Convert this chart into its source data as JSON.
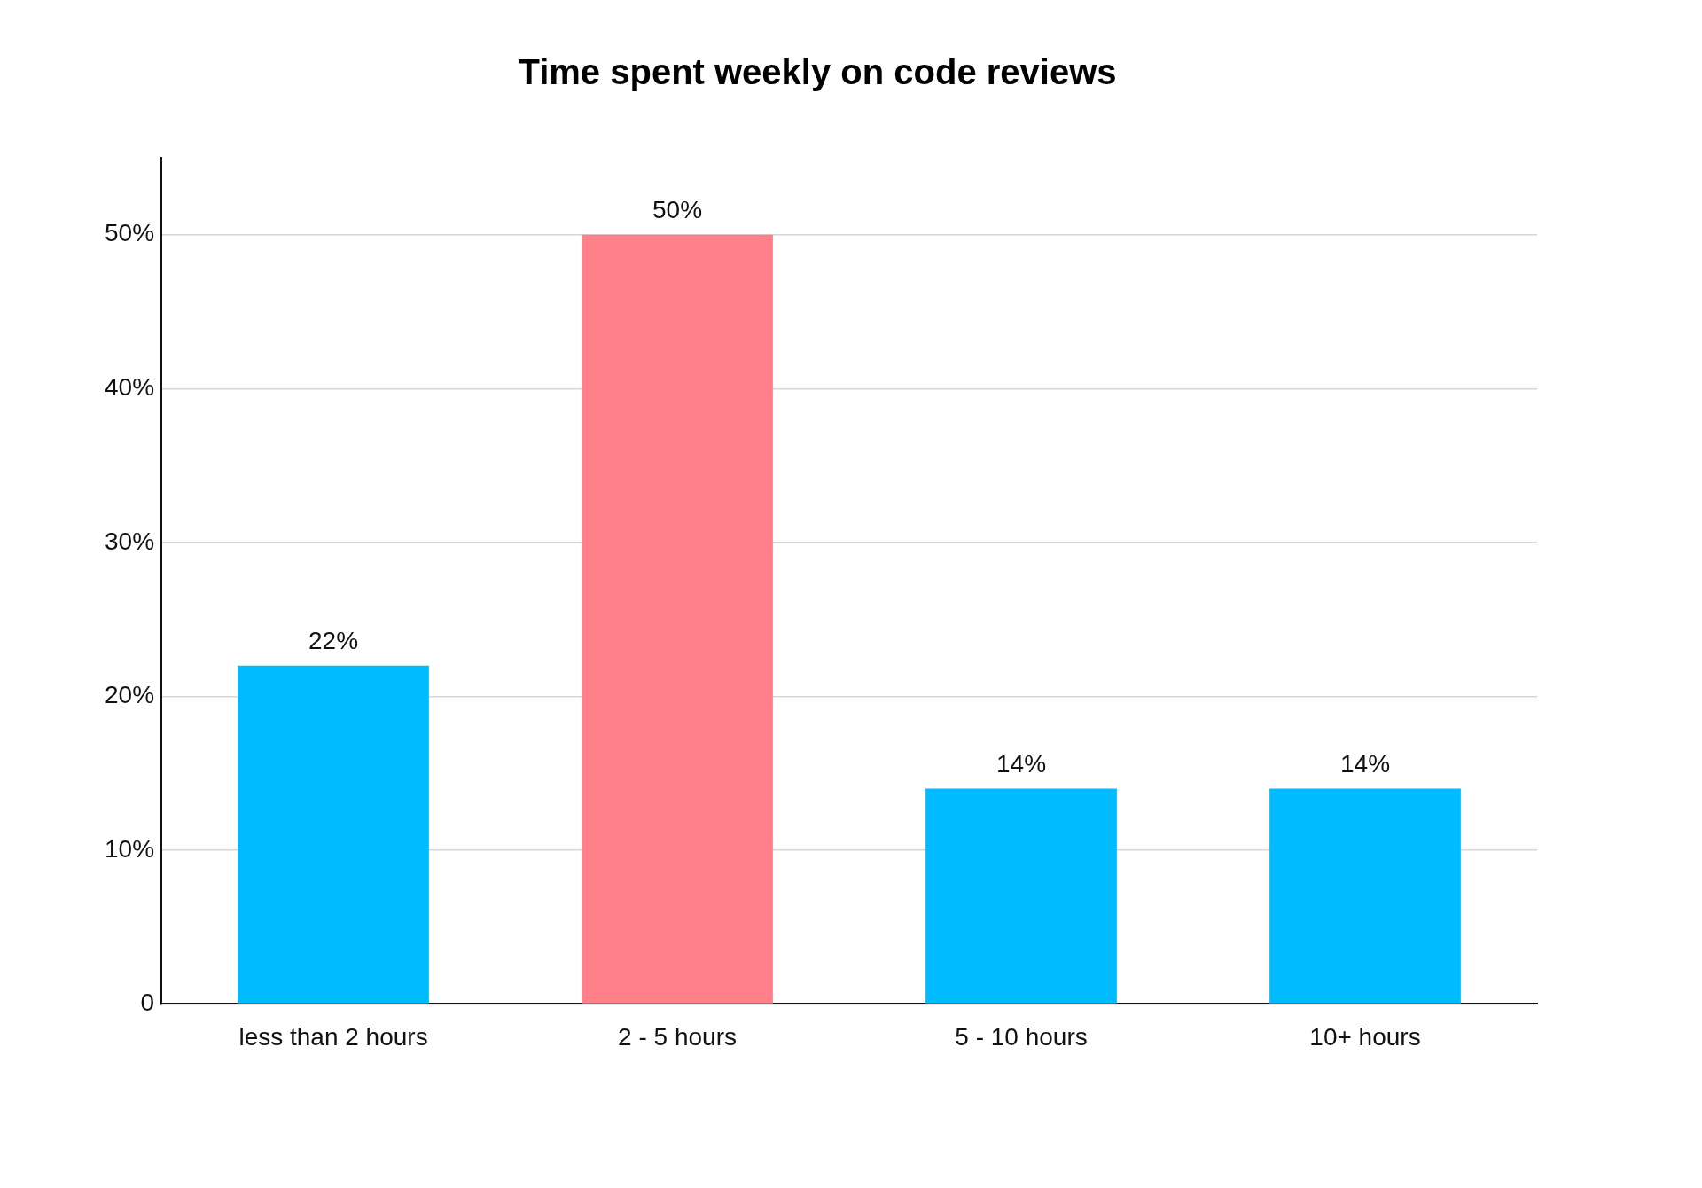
{
  "chart_data": {
    "type": "bar",
    "title": "Time spent weekly on code reviews",
    "categories": [
      "less than 2 hours",
      "2 - 5 hours",
      "5 - 10 hours",
      "10+ hours"
    ],
    "values": [
      22,
      50,
      14,
      14
    ],
    "colors": [
      "#00bbff",
      "#ff8088",
      "#00bbff",
      "#00bbff"
    ],
    "value_labels": [
      "22%",
      "50%",
      "14%",
      "14%"
    ],
    "ylim": [
      0,
      55
    ],
    "yticks": [
      {
        "value": 0,
        "label": "0"
      },
      {
        "value": 10,
        "label": "10%"
      },
      {
        "value": 20,
        "label": "20%"
      },
      {
        "value": 30,
        "label": "30%"
      },
      {
        "value": 40,
        "label": "40%"
      },
      {
        "value": 50,
        "label": "50%"
      }
    ],
    "grid": "y",
    "legend": false
  }
}
